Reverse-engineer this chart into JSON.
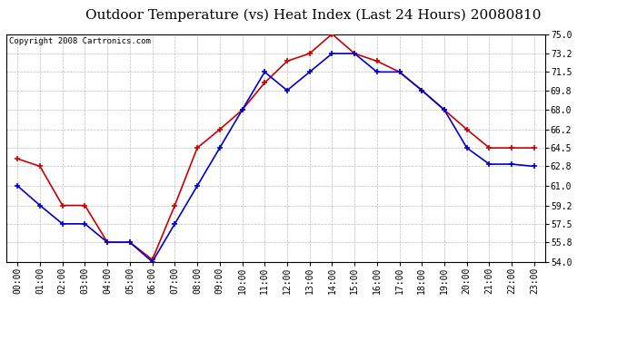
{
  "title": "Outdoor Temperature (vs) Heat Index (Last 24 Hours) 20080810",
  "copyright": "Copyright 2008 Cartronics.com",
  "hours": [
    "00:00",
    "01:00",
    "02:00",
    "03:00",
    "04:00",
    "05:00",
    "06:00",
    "07:00",
    "08:00",
    "09:00",
    "10:00",
    "11:00",
    "12:00",
    "13:00",
    "14:00",
    "15:00",
    "16:00",
    "17:00",
    "18:00",
    "19:00",
    "20:00",
    "21:00",
    "22:00",
    "23:00"
  ],
  "temp": [
    61.0,
    59.2,
    57.5,
    57.5,
    55.8,
    55.8,
    54.0,
    57.5,
    61.0,
    64.5,
    68.0,
    71.5,
    69.8,
    71.5,
    73.2,
    73.2,
    71.5,
    71.5,
    69.8,
    68.0,
    64.5,
    63.0,
    63.0,
    62.8
  ],
  "heat_index": [
    63.5,
    62.8,
    59.2,
    59.2,
    55.8,
    55.8,
    54.2,
    59.2,
    64.5,
    66.2,
    68.0,
    70.5,
    72.5,
    73.2,
    75.0,
    73.2,
    72.5,
    71.5,
    69.8,
    68.0,
    66.2,
    64.5,
    64.5,
    64.5
  ],
  "temp_color": "#0000CC",
  "heat_color": "#CC0000",
  "bg_color": "#FFFFFF",
  "plot_bg": "#FFFFFF",
  "grid_color": "#BBBBBB",
  "ylim": [
    54.0,
    75.0
  ],
  "yticks": [
    54.0,
    55.8,
    57.5,
    59.2,
    61.0,
    62.8,
    64.5,
    66.2,
    68.0,
    69.8,
    71.5,
    73.2,
    75.0
  ],
  "title_fontsize": 11,
  "copyright_fontsize": 6.5,
  "tick_fontsize": 7
}
